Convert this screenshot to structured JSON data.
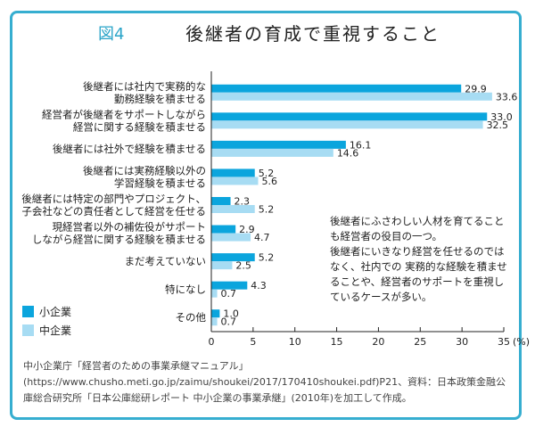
{
  "figure_label": "図4",
  "chart_data": {
    "type": "bar",
    "orientation": "horizontal",
    "title": "後継者の育成で重視すること",
    "categories": [
      [
        "後継者には社内で実務的な",
        "勤務経験を積ませる"
      ],
      [
        "経営者が後継者をサポートしながら",
        "経営に関する経験を積ませる"
      ],
      [
        "後継者には社外で経験を積ませる"
      ],
      [
        "後継者には実務経験以外の",
        "学習経験を積ませる"
      ],
      [
        "後継者には特定の部門やプロジェクト、",
        "子会社などの責任者として経営を任せる"
      ],
      [
        "現経営者以外の補佐役がサポート",
        "しながら経営に関する経験を積ませる"
      ],
      [
        "まだ考えていない"
      ],
      [
        "特になし"
      ],
      [
        "その他"
      ]
    ],
    "series": [
      {
        "name": "小企業",
        "color": "#0ba5dd",
        "values": [
          29.9,
          33.0,
          16.1,
          5.2,
          2.3,
          2.9,
          5.2,
          4.3,
          1.0
        ]
      },
      {
        "name": "中企業",
        "color": "#a7dcf3",
        "values": [
          33.6,
          32.5,
          14.6,
          5.6,
          5.2,
          4.7,
          2.5,
          0.7,
          0.7
        ]
      }
    ],
    "xlim": [
      0,
      35
    ],
    "xticks": [
      "0",
      "5",
      "10",
      "15",
      "20",
      "25",
      "30",
      "35"
    ],
    "xunit": "(%)",
    "grid": false,
    "legend_placement": "bottom-left"
  },
  "note": [
    "後継者にふさわしい人材を育てることも経営者の役目の一つ。",
    "後継者にいきなり経営を任せるのではなく、社内での 実務的な経験を積ませることや、経営者のサポートを重視しているケースが多い。"
  ],
  "source": "中小企業庁「経営者のための事業承継マニュアル」(https://www.chusho.meti.go.jp/zaimu/shoukei/2017/170410shoukei.pdf)P21、資料：日本政策金融公庫総合研究所「日本公庫総研レポート 中小企業の事業承継」(2010年)を加工して作成。"
}
